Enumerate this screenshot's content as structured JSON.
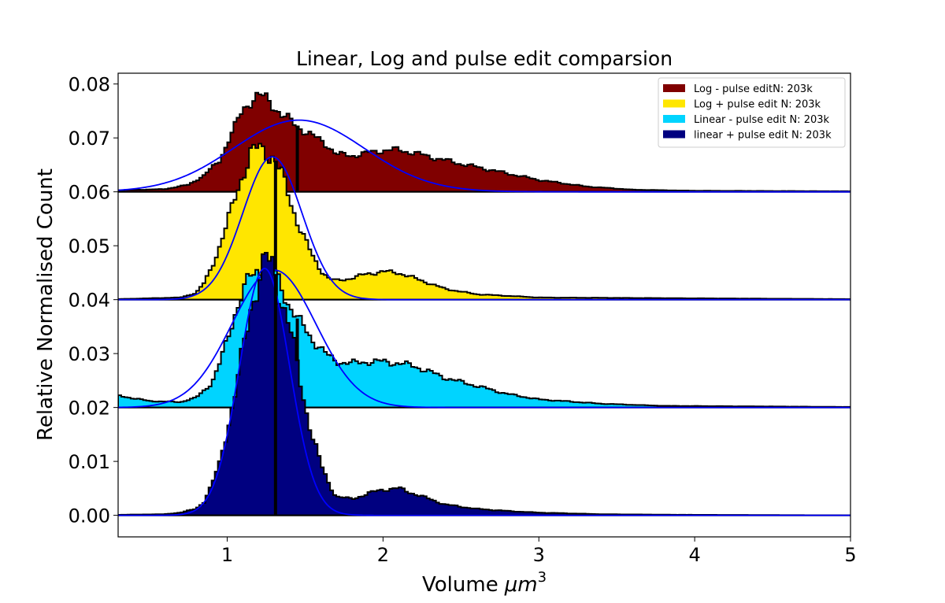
{
  "chart_data": {
    "type": "histogram",
    "title": "Linear, Log and pulse edit comparsion",
    "xlabel": "Volume",
    "xlabel_math": "μm",
    "xlabel_sup": "3",
    "ylabel": "Relative Normalised Count",
    "xlim": [
      0.3,
      5.0
    ],
    "ylim": [
      -0.004,
      0.082
    ],
    "x_ticks": [
      1,
      2,
      3,
      4,
      5
    ],
    "x_tick_labels": [
      "1",
      "2",
      "3",
      "4",
      "5"
    ],
    "y_ticks": [
      0.0,
      0.01,
      0.02,
      0.03,
      0.04,
      0.05,
      0.06,
      0.07,
      0.08
    ],
    "y_tick_labels": [
      "0.00",
      "0.01",
      "0.02",
      "0.03",
      "0.04",
      "0.05",
      "0.06",
      "0.07",
      "0.08"
    ],
    "legend_position": "top-right",
    "legend": [
      {
        "label": "Log - pulse editN: 203k",
        "color": "#800000"
      },
      {
        "label": "Log + pulse edit N: 203k",
        "color": "#ffe600"
      },
      {
        "label": "Linear - pulse edit N: 203k",
        "color": "#00d4ff"
      },
      {
        "label": "linear + pulse edit N: 203k",
        "color": "#000080"
      }
    ],
    "series": [
      {
        "name": "Log - pulse editN: 203k",
        "color": "#800000",
        "offset": 0.06,
        "mean_line_x": 1.45,
        "fit_color": "#0000ff",
        "fit": {
          "amp": 0.0133,
          "mu": 1.46,
          "sigma": 0.42
        },
        "x": [
          0.3,
          0.6,
          0.75,
          0.85,
          0.95,
          1.0,
          1.05,
          1.1,
          1.15,
          1.2,
          1.25,
          1.3,
          1.35,
          1.4,
          1.45,
          1.5,
          1.55,
          1.6,
          1.65,
          1.7,
          1.8,
          1.9,
          2.0,
          2.1,
          2.2,
          2.3,
          2.5,
          2.7,
          3.0,
          3.3,
          3.6,
          4.0,
          5.0
        ],
        "values": [
          0.0003,
          0.0005,
          0.0013,
          0.003,
          0.0058,
          0.009,
          0.012,
          0.0152,
          0.017,
          0.0178,
          0.0172,
          0.016,
          0.0143,
          0.0132,
          0.0122,
          0.0113,
          0.0103,
          0.0095,
          0.0085,
          0.007,
          0.0067,
          0.0072,
          0.0077,
          0.0078,
          0.0072,
          0.0065,
          0.0052,
          0.004,
          0.0022,
          0.001,
          0.0004,
          0.0002,
          0.0001
        ]
      },
      {
        "name": "Log + pulse edit N: 203k",
        "color": "#ffe600",
        "offset": 0.04,
        "mean_line_x": 1.31,
        "fit_color": "#0000ff",
        "fit": {
          "amp": 0.0265,
          "mu": 1.29,
          "sigma": 0.19
        },
        "x": [
          0.3,
          0.7,
          0.8,
          0.85,
          0.9,
          0.95,
          1.0,
          1.05,
          1.1,
          1.15,
          1.2,
          1.25,
          1.3,
          1.35,
          1.4,
          1.45,
          1.5,
          1.55,
          1.6,
          1.65,
          1.7,
          1.8,
          1.9,
          2.0,
          2.1,
          2.2,
          2.4,
          2.6,
          3.0,
          5.0
        ],
        "values": [
          0.0001,
          0.0004,
          0.0012,
          0.003,
          0.006,
          0.0098,
          0.014,
          0.019,
          0.0235,
          0.0268,
          0.028,
          0.0278,
          0.0262,
          0.023,
          0.019,
          0.0145,
          0.011,
          0.008,
          0.0055,
          0.004,
          0.0035,
          0.004,
          0.0048,
          0.0052,
          0.005,
          0.004,
          0.002,
          0.001,
          0.0004,
          0.0001
        ]
      },
      {
        "name": "Linear - pulse edit N: 203k",
        "color": "#00d4ff",
        "offset": 0.02,
        "mean_line_x": 1.45,
        "fit_color": "#0000ff",
        "fit": {
          "amp": 0.0255,
          "mu": 1.3,
          "sigma": 0.27
        },
        "x": [
          0.3,
          0.5,
          0.7,
          0.8,
          0.9,
          0.95,
          1.0,
          1.05,
          1.1,
          1.15,
          1.2,
          1.25,
          1.3,
          1.35,
          1.4,
          1.45,
          1.5,
          1.55,
          1.6,
          1.65,
          1.7,
          1.8,
          1.9,
          2.0,
          2.1,
          2.2,
          2.4,
          2.6,
          2.8,
          3.0,
          3.4,
          3.8,
          5.0
        ],
        "values": [
          0.0022,
          0.0012,
          0.001,
          0.0018,
          0.0045,
          0.008,
          0.0125,
          0.0175,
          0.0215,
          0.024,
          0.0255,
          0.0268,
          0.025,
          0.022,
          0.019,
          0.0165,
          0.0145,
          0.0125,
          0.011,
          0.0095,
          0.0085,
          0.0082,
          0.0085,
          0.0085,
          0.0082,
          0.0077,
          0.0055,
          0.004,
          0.0025,
          0.0015,
          0.0007,
          0.0003,
          0.0001
        ]
      },
      {
        "name": "linear + pulse edit N: 203k",
        "color": "#000080",
        "offset": 0.0,
        "mean_line_x": 1.31,
        "fit_color": "#0000ff",
        "fit": {
          "amp": 0.0458,
          "mu": 1.24,
          "sigma": 0.16
        },
        "x": [
          0.3,
          0.6,
          0.7,
          0.8,
          0.85,
          0.9,
          0.95,
          1.0,
          1.05,
          1.1,
          1.15,
          1.2,
          1.25,
          1.3,
          1.35,
          1.4,
          1.45,
          1.5,
          1.55,
          1.6,
          1.65,
          1.7,
          1.8,
          1.9,
          2.0,
          2.1,
          2.2,
          2.4,
          2.6,
          2.8,
          3.0,
          3.4,
          3.9,
          5.0
        ],
        "values": [
          0.0001,
          0.0002,
          0.0005,
          0.0012,
          0.0025,
          0.0055,
          0.0095,
          0.016,
          0.0225,
          0.03,
          0.0385,
          0.044,
          0.047,
          0.0455,
          0.0405,
          0.035,
          0.0275,
          0.0205,
          0.0145,
          0.0095,
          0.006,
          0.0035,
          0.003,
          0.004,
          0.0048,
          0.005,
          0.004,
          0.002,
          0.0012,
          0.0008,
          0.0005,
          0.0002,
          0.0001,
          0.0
        ]
      }
    ]
  }
}
